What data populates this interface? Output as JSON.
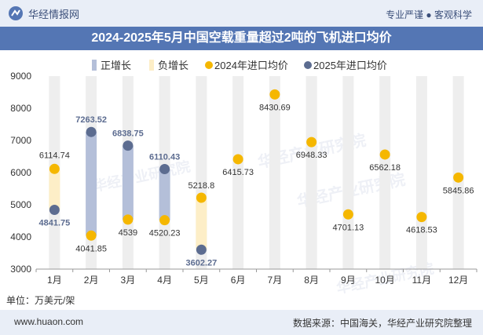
{
  "header": {
    "brand": "华经情报网",
    "tagline": "专业严谨 ● 客观科学",
    "title": "2024-2025年5月中国空载重量超过2吨的飞机进口均价"
  },
  "footer": {
    "website": "www.huaon.com",
    "source": "数据来源：中国海关，华经产业研究院整理",
    "unit": "单位：万美元/架"
  },
  "watermark": {
    "text": "华经产业研究院",
    "url": "www.huaon.com"
  },
  "colors": {
    "positive_bar": "#b4bfd9",
    "negative_bar": "#fdeec7",
    "series_2024": "#f5b700",
    "series_2025": "#5c6c90",
    "label_2025": "#5c6c90",
    "label_2024": "#333333",
    "grid_band": "#eeeeee"
  },
  "chart_data": {
    "type": "line",
    "title": "2024-2025年5月中国空载重量超过2吨的飞机进口均价",
    "ylabel": "万美元/架",
    "ylim": [
      3000,
      9000
    ],
    "yticks": [
      3000,
      4000,
      5000,
      6000,
      7000,
      8000,
      9000
    ],
    "categories": [
      "1月",
      "2月",
      "3月",
      "4月",
      "5月",
      "6月",
      "7月",
      "8月",
      "9月",
      "10月",
      "11月",
      "12月"
    ],
    "legend": [
      "正增长",
      "负增长",
      "2024年进口均价",
      "2025年进口均价"
    ],
    "series": [
      {
        "name": "2024年进口均价",
        "values": [
          6114.74,
          4041.85,
          4539,
          4520.23,
          5218.8,
          6415.73,
          8430.69,
          6948.33,
          4701.13,
          6562.18,
          4618.53,
          5845.86
        ],
        "labels": [
          "6114.74",
          "4041.85",
          "4539",
          "4520.23",
          "5218.8",
          "6415.73",
          "8430.69",
          "6948.33",
          "4701.13",
          "6562.18",
          "4618.53",
          "5845.86"
        ]
      },
      {
        "name": "2025年进口均价",
        "values": [
          4841.75,
          7263.52,
          6838.75,
          6110.43,
          3602.27,
          null,
          null,
          null,
          null,
          null,
          null,
          null
        ],
        "labels": [
          "4841.75",
          "7263.52",
          "6838.75",
          "6110.43",
          "3602.27",
          "",
          "",
          "",
          "",
          "",
          "",
          ""
        ]
      }
    ]
  }
}
